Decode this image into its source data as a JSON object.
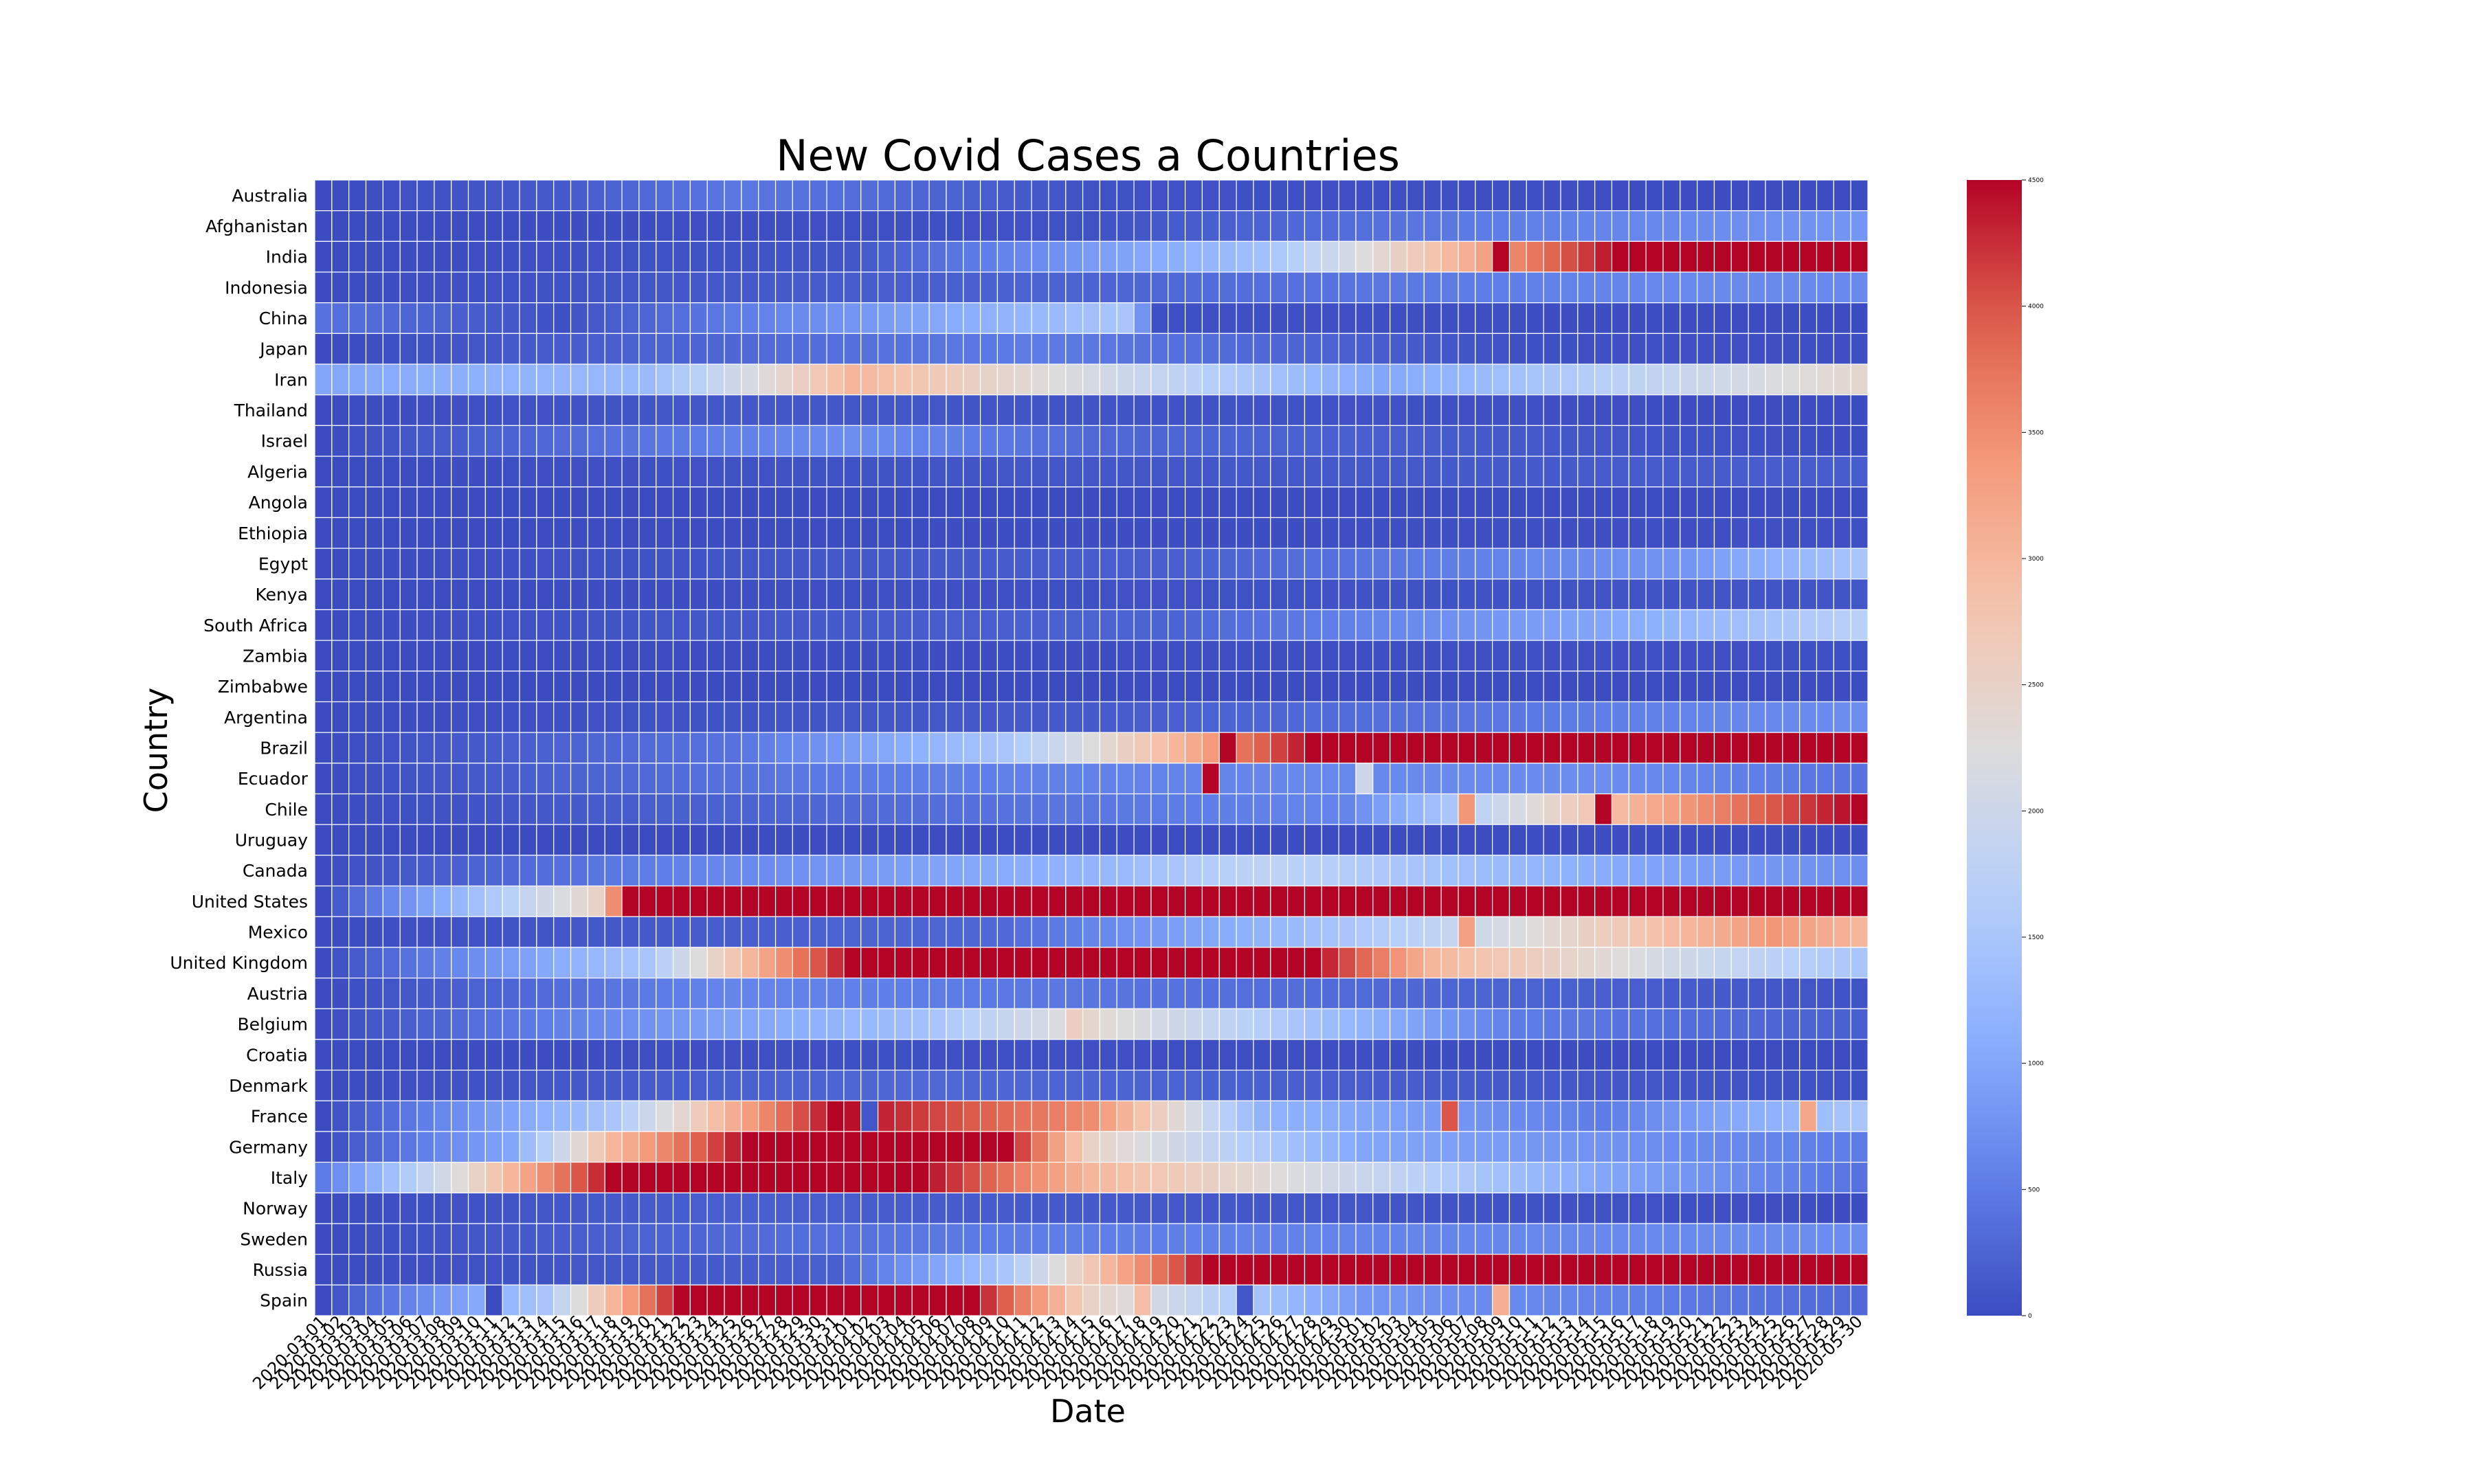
{
  "chart_data": {
    "type": "heatmap",
    "title": "New Covid Cases a Countries",
    "xlabel": "Date",
    "ylabel": "Country",
    "x_start": "2020-03-01",
    "x_end": "2020-05-30",
    "countries": [
      "Australia",
      "Afghanistan",
      "India",
      "Indonesia",
      "China",
      "Japan",
      "Iran",
      "Thailand",
      "Israel",
      "Algeria",
      "Angola",
      "Ethiopia",
      "Egypt",
      "Kenya",
      "South Africa",
      "Zambia",
      "Zimbabwe",
      "Argentina",
      "Brazil",
      "Ecuador",
      "Chile",
      "Uruguay",
      "Canada",
      "United States",
      "Mexico",
      "United Kingdom",
      "Austria",
      "Belgium",
      "Croatia",
      "Denmark",
      "France",
      "Germany",
      "Italy",
      "Norway",
      "Sweden",
      "Russia",
      "Spain"
    ],
    "color_scale": {
      "colormap": "coolwarm",
      "min": 0,
      "max": 4500,
      "ticks": [
        0,
        500,
        1000,
        1500,
        2000,
        2500,
        3000,
        3500,
        4000,
        4500
      ],
      "low_color": "#3b4cc0",
      "high_color": "#b40426"
    },
    "grid": "white cell borders",
    "colorbar_position": "right",
    "series": [
      {
        "name": "Australia",
        "values": [
          [
            0,
            "2020-03-01"
          ],
          [
            150,
            "2020-03-15"
          ],
          [
            450,
            "2020-03-25"
          ],
          [
            350,
            "2020-04-01"
          ],
          [
            60,
            "2020-04-15"
          ],
          [
            10,
            "2020-05-30"
          ]
        ]
      },
      {
        "name": "Afghanistan",
        "values": [
          [
            0,
            "2020-03-01"
          ],
          [
            60,
            "2020-04-15"
          ],
          [
            500,
            "2020-05-08"
          ],
          [
            800,
            "2020-05-30"
          ]
        ]
      },
      {
        "name": "India",
        "values": [
          [
            0,
            "2020-03-01"
          ],
          [
            100,
            "2020-04-01"
          ],
          [
            1400,
            "2020-04-25"
          ],
          [
            2800,
            "2020-05-05"
          ],
          [
            4500,
            "2020-05-16"
          ],
          [
            4500,
            "2020-05-30"
          ]
        ]
      },
      {
        "name": "Indonesia",
        "values": [
          [
            0,
            "2020-03-01"
          ],
          [
            250,
            "2020-04-15"
          ],
          [
            650,
            "2020-05-20"
          ],
          [
            650,
            "2020-05-30"
          ]
        ]
      },
      {
        "name": "China",
        "values": [
          [
            400,
            "2020-03-01"
          ],
          [
            50,
            "2020-03-15"
          ],
          [
            1500,
            "2020-04-17"
          ],
          [
            50,
            "2020-04-19"
          ],
          [
            5,
            "2020-05-30"
          ]
        ]
      },
      {
        "name": "Japan",
        "values": [
          [
            0,
            "2020-03-01"
          ],
          [
            500,
            "2020-04-12"
          ],
          [
            50,
            "2020-05-10"
          ],
          [
            30,
            "2020-05-30"
          ]
        ]
      },
      {
        "name": "Iran",
        "values": [
          [
            1000,
            "2020-03-01"
          ],
          [
            1300,
            "2020-03-20"
          ],
          [
            3000,
            "2020-04-01"
          ],
          [
            1800,
            "2020-04-20"
          ],
          [
            1000,
            "2020-05-02"
          ],
          [
            2200,
            "2020-05-25"
          ],
          [
            2400,
            "2020-05-30"
          ]
        ]
      },
      {
        "name": "Thailand",
        "values": [
          [
            0,
            "2020-03-01"
          ],
          [
            120,
            "2020-03-25"
          ],
          [
            5,
            "2020-05-30"
          ]
        ]
      },
      {
        "name": "Israel",
        "values": [
          [
            0,
            "2020-03-01"
          ],
          [
            700,
            "2020-04-01"
          ],
          [
            300,
            "2020-04-15"
          ],
          [
            10,
            "2020-05-30"
          ]
        ]
      },
      {
        "name": "Algeria",
        "values": [
          [
            0,
            "2020-03-01"
          ],
          [
            100,
            "2020-04-10"
          ],
          [
            180,
            "2020-05-30"
          ]
        ]
      },
      {
        "name": "Angola",
        "values": [
          [
            0,
            "2020-03-01"
          ],
          [
            10,
            "2020-05-30"
          ]
        ]
      },
      {
        "name": "Ethiopia",
        "values": [
          [
            0,
            "2020-03-01"
          ],
          [
            40,
            "2020-05-30"
          ]
        ]
      },
      {
        "name": "Egypt",
        "values": [
          [
            0,
            "2020-03-01"
          ],
          [
            200,
            "2020-04-20"
          ],
          [
            800,
            "2020-05-20"
          ],
          [
            1500,
            "2020-05-30"
          ]
        ]
      },
      {
        "name": "Kenya",
        "values": [
          [
            0,
            "2020-03-01"
          ],
          [
            100,
            "2020-05-30"
          ]
        ]
      },
      {
        "name": "South Africa",
        "values": [
          [
            0,
            "2020-03-01"
          ],
          [
            250,
            "2020-04-20"
          ],
          [
            1000,
            "2020-05-15"
          ],
          [
            1700,
            "2020-05-30"
          ]
        ]
      },
      {
        "name": "Zambia",
        "values": [
          [
            0,
            "2020-03-01"
          ],
          [
            50,
            "2020-05-30"
          ]
        ]
      },
      {
        "name": "Zimbabwe",
        "values": [
          [
            0,
            "2020-03-01"
          ],
          [
            10,
            "2020-05-30"
          ]
        ]
      },
      {
        "name": "Argentina",
        "values": [
          [
            0,
            "2020-03-01"
          ],
          [
            150,
            "2020-04-15"
          ],
          [
            700,
            "2020-05-30"
          ]
        ]
      },
      {
        "name": "Brazil",
        "values": [
          [
            0,
            "2020-03-01"
          ],
          [
            400,
            "2020-03-25"
          ],
          [
            1500,
            "2020-04-10"
          ],
          [
            3000,
            "2020-04-20"
          ],
          [
            4500,
            "2020-04-28"
          ],
          [
            4500,
            "2020-05-30"
          ]
        ]
      },
      {
        "name": "Ecuador",
        "values": [
          [
            0,
            "2020-03-01"
          ],
          [
            500,
            "2020-04-01"
          ],
          [
            700,
            "2020-05-15"
          ],
          [
            400,
            "2020-05-30"
          ]
        ]
      },
      {
        "name": "Chile",
        "values": [
          [
            0,
            "2020-03-01"
          ],
          [
            300,
            "2020-04-01"
          ],
          [
            600,
            "2020-04-30"
          ],
          [
            2600,
            "2020-05-13"
          ],
          [
            4000,
            "2020-05-25"
          ],
          [
            4500,
            "2020-05-30"
          ]
        ]
      },
      {
        "name": "Uruguay",
        "values": [
          [
            0,
            "2020-03-01"
          ],
          [
            20,
            "2020-05-30"
          ]
        ]
      },
      {
        "name": "Canada",
        "values": [
          [
            0,
            "2020-03-01"
          ],
          [
            1200,
            "2020-04-15"
          ],
          [
            1800,
            "2020-04-25"
          ],
          [
            900,
            "2020-05-20"
          ],
          [
            700,
            "2020-05-30"
          ]
        ]
      },
      {
        "name": "United States",
        "values": [
          [
            0,
            "2020-03-01"
          ],
          [
            2500,
            "2020-03-17"
          ],
          [
            4500,
            "2020-03-19"
          ],
          [
            4500,
            "2020-05-30"
          ]
        ]
      },
      {
        "name": "Mexico",
        "values": [
          [
            0,
            "2020-03-01"
          ],
          [
            300,
            "2020-04-10"
          ],
          [
            1800,
            "2020-05-05"
          ],
          [
            3400,
            "2020-05-25"
          ],
          [
            3000,
            "2020-05-30"
          ]
        ]
      },
      {
        "name": "United Kingdom",
        "values": [
          [
            0,
            "2020-03-01"
          ],
          [
            1500,
            "2020-03-20"
          ],
          [
            4500,
            "2020-04-01"
          ],
          [
            4500,
            "2020-04-28"
          ],
          [
            3000,
            "2020-05-05"
          ],
          [
            2000,
            "2020-05-20"
          ],
          [
            1500,
            "2020-05-30"
          ]
        ]
      },
      {
        "name": "Austria",
        "values": [
          [
            0,
            "2020-03-01"
          ],
          [
            600,
            "2020-03-25"
          ],
          [
            80,
            "2020-05-30"
          ]
        ]
      },
      {
        "name": "Belgium",
        "values": [
          [
            0,
            "2020-03-01"
          ],
          [
            1400,
            "2020-04-05"
          ],
          [
            2400,
            "2020-04-15"
          ],
          [
            500,
            "2020-05-10"
          ],
          [
            200,
            "2020-05-30"
          ]
        ]
      },
      {
        "name": "Croatia",
        "values": [
          [
            0,
            "2020-03-01"
          ],
          [
            50,
            "2020-04-01"
          ],
          [
            5,
            "2020-05-30"
          ]
        ]
      },
      {
        "name": "Denmark",
        "values": [
          [
            0,
            "2020-03-01"
          ],
          [
            300,
            "2020-04-05"
          ],
          [
            50,
            "2020-05-30"
          ]
        ]
      },
      {
        "name": "France",
        "values": [
          [
            0,
            "2020-03-01"
          ],
          [
            1500,
            "2020-03-18"
          ],
          [
            4500,
            "2020-03-31"
          ],
          [
            3500,
            "2020-04-15"
          ],
          [
            1200,
            "2020-04-25"
          ],
          [
            500,
            "2020-05-15"
          ],
          [
            1500,
            "2020-05-30"
          ]
        ]
      },
      {
        "name": "Germany",
        "values": [
          [
            0,
            "2020-03-01"
          ],
          [
            1000,
            "2020-03-12"
          ],
          [
            3000,
            "2020-03-18"
          ],
          [
            4500,
            "2020-03-26"
          ],
          [
            4500,
            "2020-04-10"
          ],
          [
            2500,
            "2020-04-15"
          ],
          [
            1000,
            "2020-05-01"
          ],
          [
            500,
            "2020-05-30"
          ]
        ]
      },
      {
        "name": "Italy",
        "values": [
          [
            500,
            "2020-03-01"
          ],
          [
            2500,
            "2020-03-10"
          ],
          [
            4500,
            "2020-03-18"
          ],
          [
            4500,
            "2020-04-05"
          ],
          [
            3000,
            "2020-04-15"
          ],
          [
            2000,
            "2020-04-30"
          ],
          [
            1000,
            "2020-05-15"
          ],
          [
            400,
            "2020-05-30"
          ]
        ]
      },
      {
        "name": "Norway",
        "values": [
          [
            0,
            "2020-03-01"
          ],
          [
            200,
            "2020-03-25"
          ],
          [
            20,
            "2020-05-30"
          ]
        ]
      },
      {
        "name": "Sweden",
        "values": [
          [
            0,
            "2020-03-01"
          ],
          [
            500,
            "2020-04-10"
          ],
          [
            700,
            "2020-05-30"
          ]
        ]
      },
      {
        "name": "Russia",
        "values": [
          [
            0,
            "2020-03-01"
          ],
          [
            200,
            "2020-03-31"
          ],
          [
            1500,
            "2020-04-10"
          ],
          [
            3500,
            "2020-04-18"
          ],
          [
            4500,
            "2020-04-22"
          ],
          [
            4500,
            "2020-05-30"
          ]
        ]
      },
      {
        "name": "Spain",
        "values": [
          [
            0,
            "2020-03-01"
          ],
          [
            1500,
            "2020-03-14"
          ],
          [
            4500,
            "2020-03-22"
          ],
          [
            4500,
            "2020-04-08"
          ],
          [
            2500,
            "2020-04-15"
          ],
          [
            800,
            "2020-05-01"
          ],
          [
            300,
            "2020-05-30"
          ]
        ]
      }
    ],
    "extra_values": [
      {
        "name": "India",
        "point": [
          "2020-05-09",
          4500
        ]
      },
      {
        "name": "Ecuador",
        "point": [
          "2020-04-22",
          4500
        ]
      },
      {
        "name": "Ecuador",
        "point": [
          "2020-05-01",
          2000
        ]
      },
      {
        "name": "Chile",
        "point": [
          "2020-05-15",
          4500
        ]
      },
      {
        "name": "Chile",
        "point": [
          "2020-05-07",
          3400
        ]
      },
      {
        "name": "France",
        "point": [
          "2020-04-02",
          100
        ]
      },
      {
        "name": "France",
        "point": [
          "2020-05-06",
          4000
        ]
      },
      {
        "name": "France",
        "point": [
          "2020-05-27",
          3200
        ]
      },
      {
        "name": "Belgium",
        "point": [
          "2020-04-14",
          2600
        ]
      },
      {
        "name": "Spain",
        "point": [
          "2020-03-11",
          0
        ]
      },
      {
        "name": "Spain",
        "point": [
          "2020-04-18",
          2900
        ]
      },
      {
        "name": "Spain",
        "point": [
          "2020-04-24",
          100
        ]
      },
      {
        "name": "Spain",
        "point": [
          "2020-05-09",
          3100
        ]
      },
      {
        "name": "Mexico",
        "point": [
          "2020-05-07",
          3300
        ]
      },
      {
        "name": "Brazil",
        "point": [
          "2020-04-23",
          4500
        ]
      }
    ]
  }
}
